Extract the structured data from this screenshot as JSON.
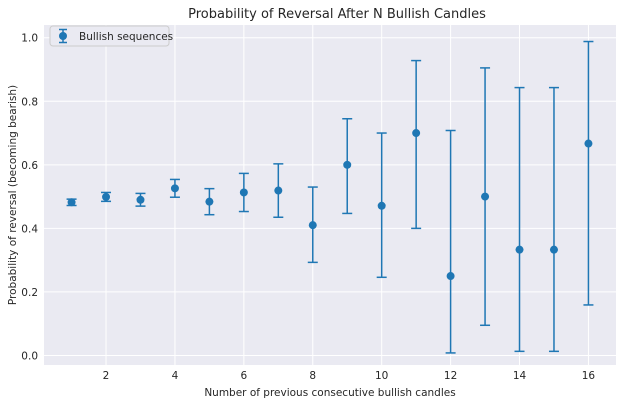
{
  "chart_data": {
    "type": "scatter",
    "title": "Probability of Reversal After N Bullish Candles",
    "xlabel": "Number of previous consecutive bullish candles",
    "ylabel": "Probability of reversal (becoming bearish)",
    "xlim": [
      0.2,
      16.8
    ],
    "ylim": [
      -0.03,
      1.04
    ],
    "xticks": [
      2,
      4,
      6,
      8,
      10,
      12,
      14,
      16
    ],
    "yticks": [
      0.0,
      0.2,
      0.4,
      0.6,
      0.8,
      1.0
    ],
    "ytick_labels": [
      "0.0",
      "0.2",
      "0.4",
      "0.6",
      "0.8",
      "1.0"
    ],
    "grid": true,
    "legend": {
      "position": "top-left"
    },
    "series": [
      {
        "name": "Bullish sequences",
        "color": "#1f77b4",
        "error_bars": true,
        "points": [
          {
            "x": 1,
            "y": 0.482,
            "low": 0.472,
            "high": 0.492
          },
          {
            "x": 2,
            "y": 0.499,
            "low": 0.485,
            "high": 0.513
          },
          {
            "x": 3,
            "y": 0.49,
            "low": 0.47,
            "high": 0.51
          },
          {
            "x": 4,
            "y": 0.526,
            "low": 0.498,
            "high": 0.554
          },
          {
            "x": 5,
            "y": 0.484,
            "low": 0.443,
            "high": 0.525
          },
          {
            "x": 6,
            "y": 0.513,
            "low": 0.453,
            "high": 0.573
          },
          {
            "x": 7,
            "y": 0.519,
            "low": 0.435,
            "high": 0.603
          },
          {
            "x": 8,
            "y": 0.41,
            "low": 0.293,
            "high": 0.53
          },
          {
            "x": 9,
            "y": 0.6,
            "low": 0.447,
            "high": 0.745
          },
          {
            "x": 10,
            "y": 0.471,
            "low": 0.246,
            "high": 0.7
          },
          {
            "x": 11,
            "y": 0.7,
            "low": 0.4,
            "high": 0.928
          },
          {
            "x": 12,
            "y": 0.25,
            "low": 0.008,
            "high": 0.708
          },
          {
            "x": 13,
            "y": 0.5,
            "low": 0.095,
            "high": 0.905
          },
          {
            "x": 14,
            "y": 0.333,
            "low": 0.013,
            "high": 0.843
          },
          {
            "x": 15,
            "y": 0.333,
            "low": 0.013,
            "high": 0.843
          },
          {
            "x": 16,
            "y": 0.667,
            "low": 0.159,
            "high": 0.988
          }
        ]
      }
    ]
  }
}
